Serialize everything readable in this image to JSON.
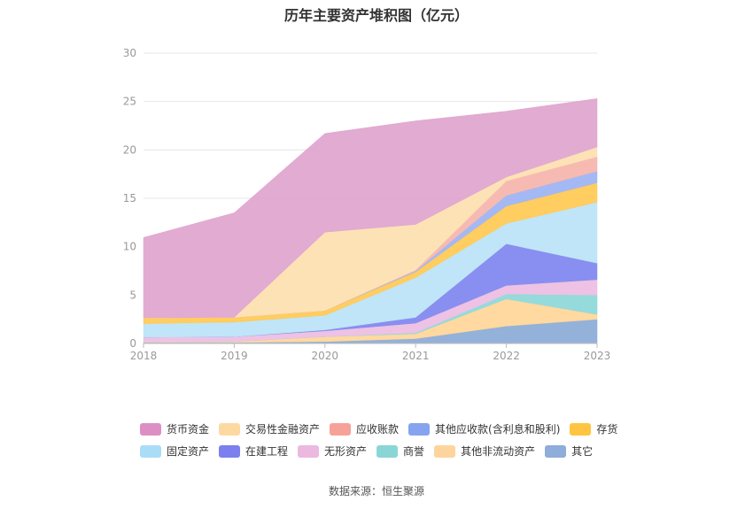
{
  "title": "历年主要资产堆积图（亿元）",
  "source": "数据来源：恒生聚源",
  "chart_data": {
    "type": "area",
    "stacked": true,
    "categories": [
      "2018",
      "2019",
      "2020",
      "2021",
      "2022",
      "2023"
    ],
    "ylim": [
      0,
      30
    ],
    "yticks": [
      "0",
      "5",
      "10",
      "15",
      "20",
      "25",
      "30"
    ],
    "grid": true,
    "legend_position": "bottom",
    "series": [
      {
        "name": "其它",
        "color": "#8eadd8",
        "values": [
          0.1,
          0.1,
          0.2,
          0.5,
          1.8,
          2.5
        ]
      },
      {
        "name": "其他非流动资产",
        "color": "#ffd79a",
        "values": [
          0.05,
          0.1,
          0.5,
          0.5,
          2.8,
          0.5
        ]
      },
      {
        "name": "商誉",
        "color": "#8fd9d9",
        "values": [
          0.0,
          0.0,
          0.0,
          0.1,
          0.5,
          2.0
        ]
      },
      {
        "name": "无形资产",
        "color": "#ecbfe3",
        "values": [
          0.5,
          0.5,
          0.6,
          1.0,
          0.9,
          1.6
        ]
      },
      {
        "name": "在建工程",
        "color": "#8389ef",
        "values": [
          0.0,
          0.0,
          0.1,
          0.6,
          4.3,
          1.7
        ]
      },
      {
        "name": "固定资产",
        "color": "#bde4f8",
        "values": [
          1.4,
          1.5,
          1.5,
          4.1,
          2.1,
          6.3
        ]
      },
      {
        "name": "存货",
        "color": "#ffca57",
        "values": [
          0.6,
          0.5,
          0.5,
          0.6,
          1.8,
          2.0
        ]
      },
      {
        "name": "其他应收款(含利息和股利)",
        "color": "#9fb5f3",
        "values": [
          0.0,
          0.0,
          0.0,
          0.1,
          1.1,
          1.2
        ]
      },
      {
        "name": "应收账款",
        "color": "#f7b6ae",
        "values": [
          0.0,
          0.0,
          0.0,
          0.1,
          1.5,
          1.5
        ]
      },
      {
        "name": "交易性金融资产",
        "color": "#fde0b2",
        "values": [
          0.0,
          0.0,
          8.1,
          4.7,
          0.4,
          1.0
        ]
      },
      {
        "name": "货币资金",
        "color": "#e0a6cf",
        "values": [
          8.3,
          10.8,
          10.2,
          10.7,
          6.8,
          5.0
        ]
      }
    ]
  },
  "legend_rows": [
    [
      {
        "label": "货币资金",
        "color": "#dd8fc4"
      },
      {
        "label": "交易性金融资产",
        "color": "#fdd9a2"
      },
      {
        "label": "应收账款",
        "color": "#f7a299"
      },
      {
        "label": "其他应收款(含利息和股利)",
        "color": "#86a3f0"
      },
      {
        "label": "存货",
        "color": "#ffc440"
      }
    ],
    [
      {
        "label": "固定资产",
        "color": "#a9ddf7"
      },
      {
        "label": "在建工程",
        "color": "#7b80ee"
      },
      {
        "label": "无形资产",
        "color": "#ebb9e0"
      },
      {
        "label": "商誉",
        "color": "#8ad6d6"
      },
      {
        "label": "其他非流动资产",
        "color": "#fdd59c"
      },
      {
        "label": "其它",
        "color": "#8eadd8"
      }
    ]
  ]
}
